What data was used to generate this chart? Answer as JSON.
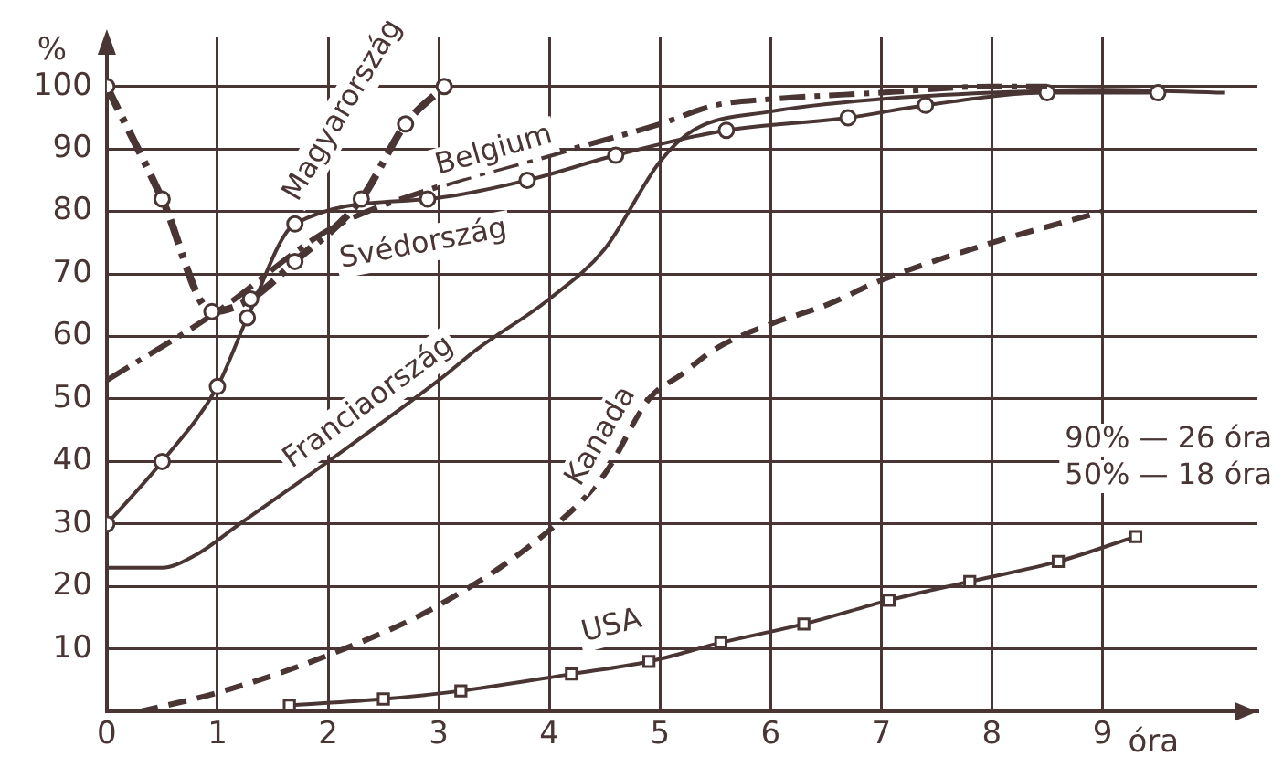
{
  "chart_data": {
    "type": "line",
    "xlabel": "óra",
    "ylabel": "%",
    "xlim": [
      0,
      10.4
    ],
    "xticks": [
      0,
      1,
      2,
      3,
      4,
      5,
      6,
      7,
      8,
      9
    ],
    "ylim": [
      0,
      108
    ],
    "yticks": [
      10,
      20,
      30,
      40,
      50,
      60,
      70,
      80,
      90,
      100
    ],
    "grid": true,
    "legend": false,
    "annotations": [
      "90% — 26 óra",
      "50% — 18 óra"
    ],
    "series": [
      {
        "name": "Magyarország",
        "color": "#4a3535",
        "marker": "circle",
        "line_style": "dashdot",
        "x": [
          0,
          0.5,
          0.95,
          1.3,
          1.7,
          2.3,
          2.7,
          3.05
        ],
        "values": [
          100,
          82,
          64,
          66,
          72,
          82,
          94,
          100
        ]
      },
      {
        "name": "Belgium",
        "color": "#4a3535",
        "marker": "none",
        "line_style": "dashdot",
        "x": [
          0,
          1,
          2,
          3,
          4,
          5,
          5.5,
          6,
          7,
          8,
          8.5
        ],
        "values": [
          53,
          64,
          77,
          84,
          89,
          94,
          97,
          98,
          99,
          100,
          100
        ]
      },
      {
        "name": "Svédország",
        "color": "#4a3535",
        "marker": "circle",
        "line_style": "solid",
        "x": [
          0,
          0.5,
          1,
          1.27,
          1.7,
          2.9,
          3.8,
          4.6,
          5.6,
          6.7,
          7.4,
          8.5,
          9.5
        ],
        "values": [
          30,
          40,
          52,
          63,
          78,
          82,
          85,
          89,
          93,
          95,
          97,
          99,
          99
        ]
      },
      {
        "name": "Franciaország",
        "color": "#4a3535",
        "marker": "none",
        "line_style": "solid",
        "x": [
          0,
          0.5,
          0.8,
          1.2,
          2,
          3,
          3.35,
          4,
          4.5,
          5,
          5.3,
          6,
          7,
          8,
          9,
          10.1
        ],
        "values": [
          23,
          23,
          25,
          30,
          40,
          53,
          58,
          66,
          74,
          88,
          93,
          96,
          98,
          99,
          99.5,
          99
        ]
      },
      {
        "name": "Kanada",
        "color": "#4a3535",
        "marker": "none",
        "line_style": "dashed",
        "x": [
          0.3,
          1,
          2,
          3,
          4,
          4.5,
          4.9,
          5.2,
          5.5,
          6,
          6.5,
          7,
          8,
          9
        ],
        "values": [
          0,
          3,
          9,
          17,
          29,
          38,
          50,
          54,
          58,
          62,
          65,
          69,
          75,
          80
        ]
      },
      {
        "name": "USA",
        "color": "#4a3535",
        "marker": "square",
        "line_style": "solid",
        "x": [
          1.65,
          2.5,
          3.2,
          4.2,
          4.9,
          5.55,
          6.3,
          7.07,
          7.8,
          8.6,
          9.3
        ],
        "values": [
          1,
          2,
          3.3,
          6,
          8,
          11,
          14,
          17.8,
          20.8,
          24,
          28
        ]
      }
    ]
  }
}
